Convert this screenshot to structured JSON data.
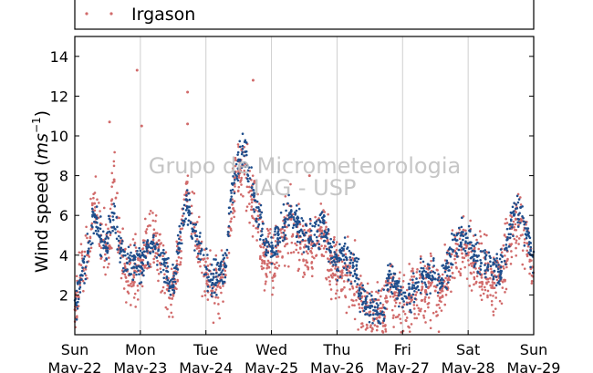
{
  "chart_data": {
    "type": "scatter",
    "ylabel_main": "Wind speed (",
    "ylabel_unit": "ms",
    "ylabel_exp": "−1",
    "ylabel_close": ")",
    "ylim": [
      0,
      15
    ],
    "yticks": [
      2,
      4,
      6,
      8,
      10,
      12,
      14
    ],
    "xlim": [
      0,
      7
    ],
    "xticks": [
      {
        "day": "Sun",
        "date": "May-22"
      },
      {
        "day": "Mon",
        "date": "May-23"
      },
      {
        "day": "Tue",
        "date": "May-24"
      },
      {
        "day": "Wed",
        "date": "May-25"
      },
      {
        "day": "Thu",
        "date": "May-26"
      },
      {
        "day": "Fri",
        "date": "May-27"
      },
      {
        "day": "Sat",
        "date": "May-28"
      },
      {
        "day": "Sun",
        "date": "May-29"
      }
    ],
    "grid": "vertical",
    "legend_position": "top",
    "series": [
      {
        "name": "",
        "color": "#1f4e8c",
        "x": [
          0.02,
          0.1,
          0.2,
          0.3,
          0.4,
          0.5,
          0.6,
          0.7,
          0.8,
          0.9,
          1.0,
          1.1,
          1.2,
          1.3,
          1.4,
          1.5,
          1.6,
          1.7,
          1.8,
          1.9,
          2.0,
          2.1,
          2.2,
          2.3,
          2.4,
          2.5,
          2.6,
          2.7,
          2.8,
          2.9,
          3.0,
          3.1,
          3.2,
          3.3,
          3.4,
          3.5,
          3.6,
          3.7,
          3.8,
          3.9,
          4.0,
          4.1,
          4.2,
          4.3,
          4.4,
          4.5,
          4.6,
          4.7,
          4.8,
          4.9,
          5.0,
          5.1,
          5.2,
          5.3,
          5.4,
          5.5,
          5.6,
          5.7,
          5.8,
          5.9,
          6.0,
          6.1,
          6.2,
          6.3,
          6.4,
          6.5,
          6.6,
          6.7,
          6.8,
          6.9,
          6.98
        ],
        "y": [
          1.6,
          3.0,
          4.2,
          6.0,
          4.8,
          4.6,
          6.1,
          4.2,
          3.6,
          3.4,
          3.4,
          4.2,
          4.6,
          4.0,
          3.2,
          2.4,
          4.6,
          6.8,
          5.2,
          4.6,
          3.4,
          2.6,
          3.0,
          3.4,
          7.6,
          8.8,
          9.2,
          7.4,
          6.4,
          4.6,
          4.2,
          4.8,
          5.6,
          6.2,
          5.6,
          5.0,
          4.8,
          5.2,
          5.6,
          4.2,
          3.8,
          4.0,
          3.6,
          3.0,
          1.6,
          1.4,
          1.2,
          1.0,
          3.2,
          2.4,
          1.8,
          2.0,
          2.6,
          3.0,
          3.0,
          2.8,
          2.6,
          3.4,
          4.8,
          5.0,
          4.6,
          4.2,
          3.6,
          3.4,
          3.2,
          3.4,
          4.8,
          6.0,
          6.4,
          5.2,
          4.0
        ]
      },
      {
        "name": "Irgason",
        "color": "#d16a6a",
        "x": [
          0.02,
          0.1,
          0.2,
          0.3,
          0.4,
          0.5,
          0.6,
          0.7,
          0.8,
          0.9,
          1.0,
          1.1,
          1.2,
          1.3,
          1.4,
          1.5,
          1.6,
          1.7,
          1.8,
          1.9,
          2.0,
          2.1,
          2.2,
          2.3,
          2.4,
          2.5,
          2.6,
          2.7,
          2.8,
          2.9,
          3.0,
          3.1,
          3.2,
          3.3,
          3.4,
          3.5,
          3.6,
          3.7,
          3.8,
          3.9,
          4.0,
          4.1,
          4.2,
          4.3,
          4.4,
          4.5,
          4.6,
          4.7,
          4.8,
          4.9,
          5.0,
          5.1,
          5.2,
          5.3,
          5.4,
          5.5,
          5.6,
          5.7,
          5.8,
          5.9,
          6.0,
          6.1,
          6.2,
          6.3,
          6.4,
          6.5,
          6.6,
          6.7,
          6.8,
          6.9,
          6.98
        ],
        "y": [
          1.4,
          2.8,
          4.0,
          6.6,
          5.0,
          4.2,
          7.8,
          4.6,
          3.2,
          3.0,
          3.2,
          4.6,
          5.0,
          3.6,
          2.8,
          2.0,
          4.2,
          7.6,
          5.6,
          4.2,
          3.0,
          2.2,
          2.6,
          3.0,
          6.8,
          8.2,
          8.6,
          6.8,
          5.8,
          4.0,
          3.6,
          4.2,
          5.0,
          5.8,
          5.0,
          4.4,
          4.2,
          4.6,
          5.0,
          3.6,
          3.2,
          3.4,
          3.0,
          2.4,
          1.2,
          1.0,
          0.8,
          0.6,
          2.6,
          1.8,
          1.4,
          1.6,
          2.0,
          2.4,
          2.4,
          2.2,
          2.2,
          2.8,
          4.2,
          4.4,
          4.0,
          3.6,
          3.0,
          2.8,
          2.6,
          2.8,
          4.2,
          5.4,
          5.8,
          4.6,
          3.4
        ]
      }
    ],
    "outliers": [
      {
        "x": 0.53,
        "y": 10.7
      },
      {
        "x": 0.95,
        "y": 13.3
      },
      {
        "x": 1.02,
        "y": 10.5
      },
      {
        "x": 1.72,
        "y": 12.2
      },
      {
        "x": 1.72,
        "y": 10.6
      },
      {
        "x": 2.72,
        "y": 12.8
      },
      {
        "x": 3.58,
        "y": 8.0
      }
    ],
    "watermark_line1": "Grupo de Micrometeorologia",
    "watermark_line2": "IAG - USP"
  }
}
